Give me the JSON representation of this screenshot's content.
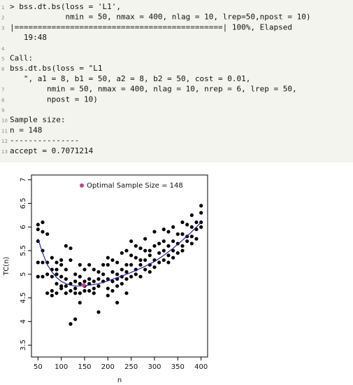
{
  "code": {
    "lines": [
      {
        "number": "1",
        "text": "> bss.dt.bs(loss = 'L1',"
      },
      {
        "number": "2",
        "text": "            nmin = 50, nmax = 400, nlag = 10, lrep=50,npost = 10)"
      },
      {
        "number": "3",
        "text": "|=============================================| 100%, Elapsed"
      },
      {
        "text": "   19:48"
      },
      {
        "number": "4"
      },
      {
        "number": "5",
        "text": "Call:"
      },
      {
        "number": "6",
        "text": "bss.dt.bs(loss = \"L1"
      },
      {
        "text": "   \", a1 = 8, b1 = 50, a2 = 8, b2 = 50, cost = 0.01,"
      },
      {
        "number": "7",
        "text": "        nmin = 50, nmax = 400, nlag = 10, nrep = 6, lrep = 50,"
      },
      {
        "number": "8",
        "text": "        npost = 10)"
      },
      {
        "number": "9"
      },
      {
        "number": "10",
        "text": "Sample size:"
      },
      {
        "number": "11",
        "text": "n = 148"
      },
      {
        "number": "12",
        "text": "---------------"
      },
      {
        "number": "13",
        "text": "accept = 0.7071214"
      }
    ]
  },
  "chart_data": {
    "type": "scatter",
    "x_label": "n",
    "y_label": "TC(n)",
    "xlim": [
      36,
      414
    ],
    "ylim": [
      3.25,
      7.1
    ],
    "xticks": [
      50,
      100,
      150,
      200,
      250,
      300,
      350,
      400
    ],
    "yticks": [
      3.5,
      4.0,
      4.5,
      5.0,
      5.5,
      6.0,
      6.5,
      7.0
    ],
    "series": [
      {
        "color": "#000000",
        "x": [
          50,
          50,
          50,
          50,
          50,
          60,
          60,
          60,
          60,
          60,
          70,
          70,
          70,
          70,
          80,
          80,
          80,
          80,
          80,
          90,
          90,
          90,
          90,
          90,
          100,
          100,
          100,
          100,
          100,
          110,
          110,
          110,
          110,
          110,
          120,
          120,
          120,
          120,
          120,
          130,
          130,
          130,
          130,
          130,
          140,
          140,
          140,
          140,
          140,
          150,
          150,
          150,
          150,
          160,
          160,
          160,
          160,
          170,
          170,
          170,
          170,
          180,
          180,
          180,
          180,
          190,
          190,
          190,
          200,
          200,
          200,
          200,
          200,
          210,
          210,
          210,
          210,
          220,
          220,
          220,
          220,
          220,
          230,
          230,
          230,
          230,
          240,
          240,
          240,
          240,
          240,
          250,
          250,
          250,
          250,
          260,
          260,
          260,
          260,
          270,
          270,
          270,
          270,
          280,
          280,
          280,
          280,
          290,
          290,
          290,
          290,
          300,
          300,
          300,
          300,
          310,
          310,
          310,
          320,
          320,
          320,
          320,
          330,
          330,
          330,
          330,
          340,
          340,
          340,
          340,
          350,
          350,
          350,
          360,
          360,
          360,
          360,
          370,
          370,
          370,
          380,
          380,
          380,
          380,
          390,
          390,
          390,
          400,
          400,
          400,
          400
        ],
        "values": [
          6.05,
          5.95,
          5.7,
          5.25,
          4.95,
          6.1,
          5.9,
          5.5,
          5.25,
          4.95,
          5.85,
          5.25,
          5.0,
          4.6,
          5.35,
          5.1,
          4.95,
          4.65,
          4.55,
          5.25,
          5.1,
          5.0,
          4.8,
          4.6,
          5.3,
          5.2,
          4.95,
          4.75,
          4.7,
          5.6,
          5.1,
          4.9,
          4.75,
          4.6,
          5.55,
          5.3,
          4.8,
          4.65,
          3.95,
          5.0,
          4.85,
          4.7,
          4.6,
          4.05,
          5.2,
          4.95,
          4.8,
          4.6,
          4.4,
          5.1,
          4.85,
          4.75,
          4.65,
          5.2,
          4.9,
          4.8,
          4.65,
          5.1,
          4.85,
          4.7,
          4.6,
          5.05,
          4.9,
          4.75,
          4.2,
          5.2,
          5.0,
          4.85,
          5.35,
          5.2,
          4.9,
          4.7,
          4.55,
          5.3,
          5.05,
          4.85,
          4.65,
          5.25,
          5.0,
          4.9,
          4.75,
          4.4,
          5.45,
          5.1,
          4.95,
          4.8,
          5.5,
          5.2,
          5.05,
          4.9,
          4.6,
          5.7,
          5.4,
          5.2,
          4.95,
          5.6,
          5.35,
          5.1,
          5.0,
          5.55,
          5.3,
          5.2,
          4.95,
          5.75,
          5.5,
          5.3,
          5.1,
          5.5,
          5.4,
          5.2,
          5.05,
          5.9,
          5.6,
          5.3,
          5.15,
          5.65,
          5.45,
          5.25,
          5.95,
          5.7,
          5.5,
          5.3,
          5.9,
          5.6,
          5.4,
          5.25,
          6.0,
          5.7,
          5.5,
          5.35,
          5.85,
          5.65,
          5.45,
          6.1,
          5.85,
          5.6,
          5.5,
          6.05,
          5.8,
          5.7,
          6.25,
          6.0,
          5.8,
          5.65,
          6.1,
          5.95,
          5.75,
          6.45,
          6.3,
          6.1,
          6.0
        ]
      },
      {
        "type": "line",
        "color": "#2222aa",
        "x": [
          50,
          60,
          70,
          80,
          90,
          100,
          110,
          120,
          130,
          140,
          150,
          160,
          180,
          200,
          220,
          240,
          260,
          280,
          300,
          320,
          340,
          360,
          380,
          400
        ],
        "values": [
          5.75,
          5.45,
          5.2,
          5.05,
          4.93,
          4.85,
          4.8,
          4.77,
          4.75,
          4.75,
          4.76,
          4.77,
          4.8,
          4.86,
          4.93,
          5.0,
          5.08,
          5.17,
          5.27,
          5.4,
          5.55,
          5.72,
          5.9,
          6.1
        ]
      }
    ],
    "optimal": {
      "label": "Optimal Sample Size = 148",
      "x": 148,
      "value": 4.77,
      "color": "#c0448f"
    }
  }
}
